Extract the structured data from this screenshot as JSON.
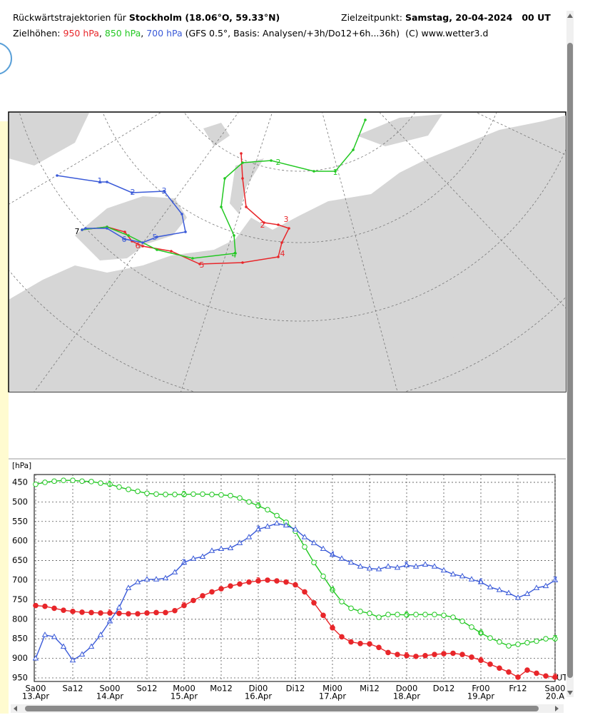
{
  "header": {
    "title_prefix": "Rückwärtstrajektorien für",
    "location": "Stockholm (18.06°O, 59.33°N)",
    "target_label": "Zielzeitpunkt:",
    "target_time": "Samstag, 20-04-2024   00 UT",
    "levels_label": "Zielhöhen:",
    "level_separator": ",",
    "model_note": "(GFS 0.5°, Basis: Analysen/+3h/Do12+6h...36h)",
    "copyright": "(C) www.wetter3.d"
  },
  "map": {
    "start_label": 7,
    "trajectories": [
      {
        "labels": [
          2,
          3,
          4,
          5,
          6
        ]
      },
      {
        "labels": [
          1,
          2,
          4
        ]
      },
      {
        "labels": [
          1,
          2,
          3,
          5,
          6
        ]
      }
    ]
  },
  "chart_data": {
    "type": "line",
    "y_label": "[hPa]",
    "unit_label": "UT",
    "x": [
      0,
      3,
      6,
      9,
      12,
      15,
      18,
      21,
      24,
      27,
      30,
      33,
      36,
      39,
      42,
      45,
      48,
      51,
      54,
      57,
      60,
      63,
      66,
      69,
      72,
      75,
      78,
      81,
      84,
      87,
      90,
      93,
      96,
      99,
      102,
      105,
      108,
      111,
      114,
      117,
      120,
      123,
      126,
      129,
      132,
      135,
      138,
      141,
      144,
      147,
      150,
      153,
      156,
      159,
      162,
      165,
      168
    ],
    "xlim": [
      0,
      168
    ],
    "xticks": [
      {
        "value": 0,
        "label": "Sa00"
      },
      {
        "value": 12,
        "label": "Sa12"
      },
      {
        "value": 24,
        "label": "So00"
      },
      {
        "value": 36,
        "label": "So12"
      },
      {
        "value": 48,
        "label": "Mo00"
      },
      {
        "value": 60,
        "label": "Mo12"
      },
      {
        "value": 72,
        "label": "Di00"
      },
      {
        "value": 84,
        "label": "Di12"
      },
      {
        "value": 96,
        "label": "Mi00"
      },
      {
        "value": 108,
        "label": "Mi12"
      },
      {
        "value": 120,
        "label": "Do00"
      },
      {
        "value": 132,
        "label": "Do12"
      },
      {
        "value": 144,
        "label": "Fr00"
      },
      {
        "value": 156,
        "label": "Fr12"
      },
      {
        "value": 168,
        "label": "Sa00"
      }
    ],
    "xtick_dates": [
      {
        "value": 0,
        "label": "13.Apr"
      },
      {
        "value": 24,
        "label": "14.Apr"
      },
      {
        "value": 48,
        "label": "15.Apr"
      },
      {
        "value": 72,
        "label": "16.Apr"
      },
      {
        "value": 96,
        "label": "17.Apr"
      },
      {
        "value": 120,
        "label": "18.Apr"
      },
      {
        "value": 144,
        "label": "19.Apr"
      },
      {
        "value": 168,
        "label": "20.A"
      }
    ],
    "ylim": [
      960,
      430
    ],
    "yticks": [
      450,
      500,
      550,
      600,
      650,
      700,
      750,
      800,
      850,
      900,
      950
    ],
    "grid": true,
    "point_labels": [
      1,
      2,
      3,
      4,
      5,
      6,
      7
    ],
    "series": [
      {
        "name": "950 hPa",
        "color": "#e8262a",
        "marker": "filled-circle",
        "values": [
          765,
          767,
          772,
          777,
          780,
          782,
          783,
          784,
          784,
          785,
          786,
          786,
          784,
          783,
          783,
          778,
          765,
          752,
          740,
          730,
          722,
          715,
          710,
          705,
          702,
          700,
          702,
          705,
          712,
          730,
          758,
          790,
          822,
          845,
          858,
          862,
          863,
          872,
          885,
          890,
          893,
          895,
          893,
          890,
          888,
          887,
          890,
          897,
          905,
          915,
          925,
          935,
          948,
          930,
          938,
          945,
          948
        ]
      },
      {
        "name": "850 hPa",
        "color": "#22c822",
        "marker": "circle",
        "values": [
          455,
          450,
          447,
          445,
          445,
          447,
          448,
          452,
          455,
          462,
          468,
          473,
          478,
          480,
          481,
          481,
          481,
          480,
          480,
          481,
          482,
          484,
          490,
          500,
          510,
          520,
          535,
          552,
          575,
          615,
          655,
          690,
          725,
          755,
          772,
          780,
          785,
          795,
          788,
          788,
          789,
          788,
          788,
          788,
          790,
          795,
          805,
          820,
          835,
          848,
          858,
          868,
          864,
          860,
          856,
          850,
          850
        ]
      },
      {
        "name": "700 hPa",
        "color": "#3a5ad8",
        "marker": "triangle",
        "values": [
          900,
          840,
          845,
          870,
          905,
          890,
          870,
          840,
          805,
          770,
          720,
          705,
          698,
          698,
          695,
          680,
          655,
          645,
          640,
          625,
          620,
          618,
          605,
          590,
          570,
          563,
          555,
          560,
          570,
          590,
          605,
          620,
          635,
          645,
          655,
          665,
          670,
          672,
          665,
          668,
          662,
          665,
          660,
          665,
          675,
          685,
          690,
          698,
          705,
          718,
          725,
          733,
          745,
          735,
          720,
          715,
          700
        ]
      }
    ]
  }
}
